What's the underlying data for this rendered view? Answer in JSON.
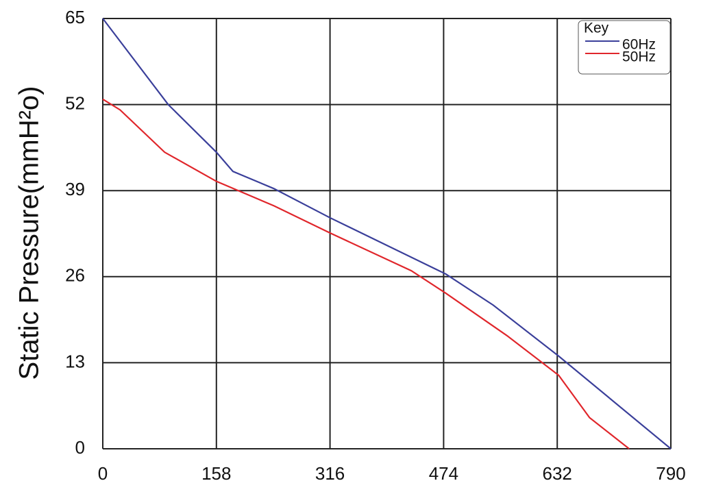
{
  "chart_data": {
    "type": "line",
    "y_label": "Static Pressure(mmH²o)",
    "legend_title": "Key",
    "legend": "upper right",
    "grid": true,
    "xlim": [
      0,
      790
    ],
    "xticks": [
      0,
      158,
      316,
      474,
      632,
      790
    ],
    "ylim": [
      0,
      65
    ],
    "yticks": [
      0,
      13,
      26,
      39,
      52,
      65
    ],
    "series": [
      {
        "name": "60Hz",
        "color": "#3a3f9a",
        "x": [
          0,
          91,
          158,
          181,
          238,
          316,
          477,
          543,
          634,
          790
        ],
        "values": [
          65,
          52,
          44.8,
          41.9,
          39.3,
          34.9,
          26.4,
          21.7,
          14,
          0
        ]
      },
      {
        "name": "50Hz",
        "color": "#e0262b",
        "x": [
          0,
          24,
          86,
          158,
          238,
          316,
          429,
          477,
          562,
          634,
          677,
          732
        ],
        "values": [
          52.8,
          51.2,
          44.8,
          40.4,
          36.7,
          32.6,
          26.9,
          23.5,
          17.1,
          11.1,
          4.7,
          0
        ]
      }
    ]
  }
}
